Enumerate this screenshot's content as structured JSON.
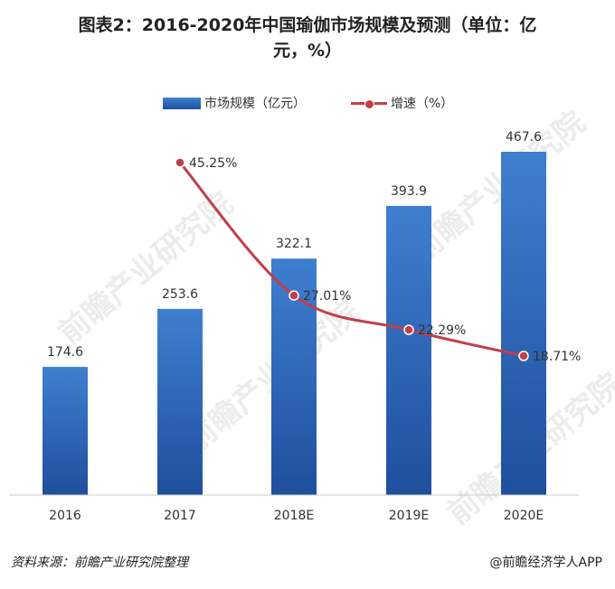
{
  "title_line1": "图表2：2016-2020年中国瑜伽市场规模及预测（单位：亿",
  "title_line2": "元，%）",
  "legend": {
    "bar_label": "市场规模（亿元）",
    "line_label": "增速（%）"
  },
  "source": "资料来源：前瞻产业研究院整理",
  "credit": "@前瞻经济学人APP",
  "watermark_text": "前瞻产业研究院",
  "colors": {
    "bar_top": "#3f7fd0",
    "bar_bottom": "#1f4f9c",
    "line": "#c0404a"
  },
  "chart_data": {
    "type": "bar",
    "categories": [
      "2016",
      "2017",
      "2018E",
      "2019E",
      "2020E"
    ],
    "series": [
      {
        "name": "市场规模（亿元）",
        "type": "bar",
        "values": [
          174.6,
          253.6,
          322.1,
          393.9,
          467.6
        ],
        "labels": [
          "174.6",
          "253.6",
          "322.1",
          "393.9",
          "467.6"
        ]
      },
      {
        "name": "增速（%）",
        "type": "line",
        "values": [
          null,
          45.25,
          27.01,
          22.29,
          18.71
        ],
        "labels": [
          "",
          "45.25%",
          "27.01%",
          "22.29%",
          "18.71%"
        ]
      }
    ],
    "legend_position": "top-center",
    "grid": false
  }
}
